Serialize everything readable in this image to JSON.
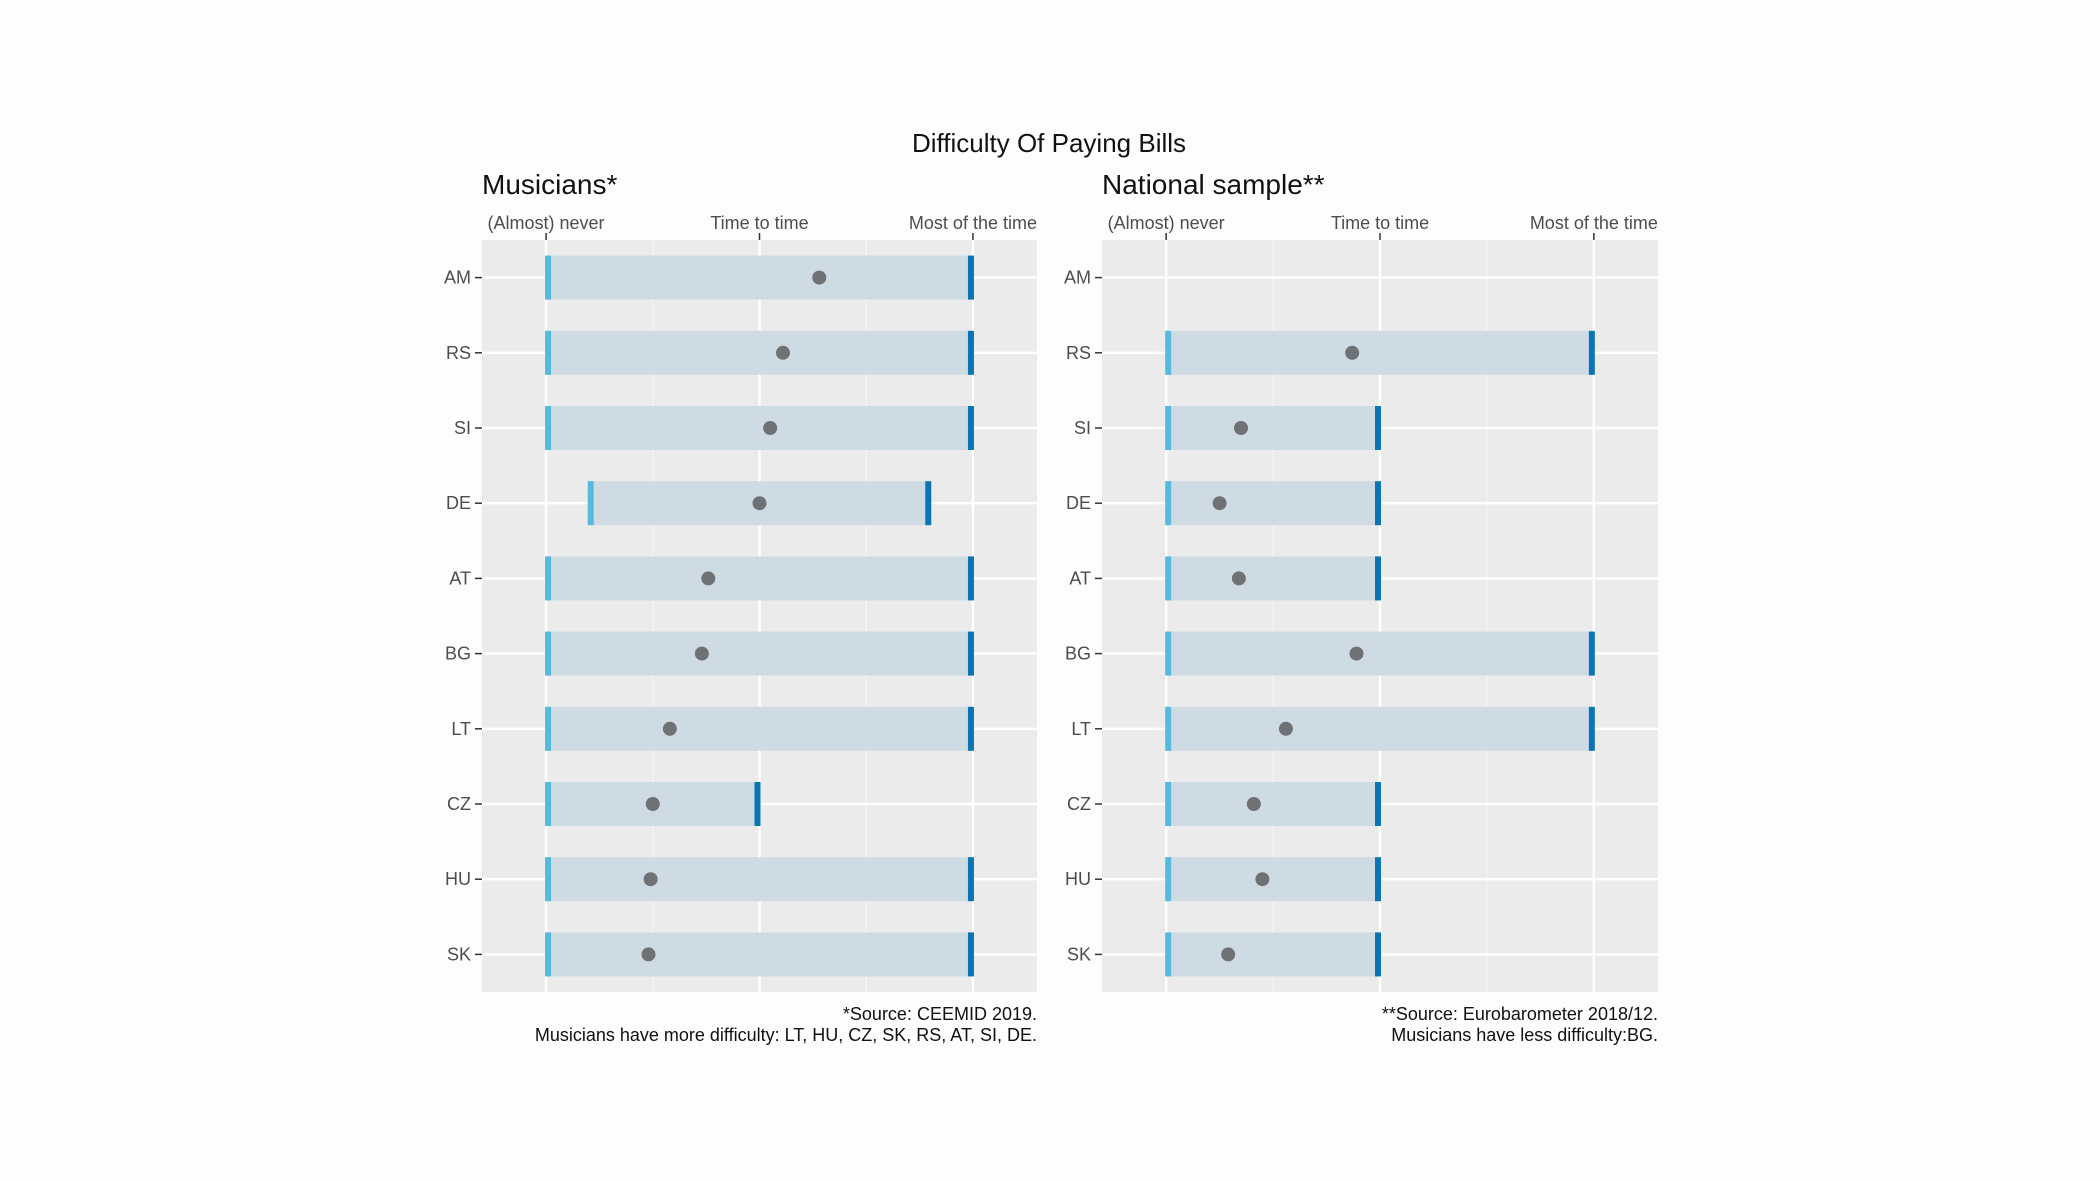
{
  "figure": {
    "title": "Difficulty Of Paying Bills"
  },
  "chart_data": [
    {
      "type": "range",
      "title": "Musicians*",
      "x_ticks": [
        {
          "value": 1,
          "label": "(Almost) never"
        },
        {
          "value": 2,
          "label": "Time to time"
        },
        {
          "value": 3,
          "label": "Most of the time"
        }
      ],
      "xlim": [
        0.7,
        3.3
      ],
      "categories": [
        "AM",
        "RS",
        "SI",
        "DE",
        "AT",
        "BG",
        "LT",
        "CZ",
        "HU",
        "SK"
      ],
      "low": [
        1,
        1,
        1,
        1.2,
        1,
        1,
        1,
        1,
        1,
        1
      ],
      "high": [
        3,
        3,
        3,
        2.8,
        3,
        3,
        3,
        2,
        3,
        3
      ],
      "mean": [
        2.28,
        2.11,
        2.05,
        2.0,
        1.76,
        1.73,
        1.58,
        1.5,
        1.49,
        1.48
      ],
      "caption": [
        "*Source: CEEMID 2019.",
        "Musicians have more difficulty: LT, HU, CZ, SK, RS, AT, SI, DE."
      ],
      "colors": {
        "low": "#56b9de",
        "high": "#0a74b4",
        "range": "#cfdbe3",
        "mean": "#6f7275"
      }
    },
    {
      "type": "range",
      "title": "National sample**",
      "x_ticks": [
        {
          "value": 1,
          "label": "(Almost) never"
        },
        {
          "value": 2,
          "label": "Time to time"
        },
        {
          "value": 3,
          "label": "Most of the time"
        }
      ],
      "xlim": [
        0.7,
        3.3
      ],
      "categories": [
        "AM",
        "RS",
        "SI",
        "DE",
        "AT",
        "BG",
        "LT",
        "CZ",
        "HU",
        "SK"
      ],
      "low": [
        null,
        1,
        1,
        1,
        1,
        1,
        1,
        1,
        1,
        1
      ],
      "high": [
        null,
        3,
        2,
        2,
        2,
        3,
        3,
        2,
        2,
        2
      ],
      "mean": [
        null,
        1.87,
        1.35,
        1.25,
        1.34,
        1.89,
        1.56,
        1.41,
        1.45,
        1.29
      ],
      "caption": [
        "**Source: Eurobarometer 2018/12.",
        "Musicians have less difficulty:BG."
      ],
      "colors": {
        "low": "#56b9de",
        "high": "#0a74b4",
        "range": "#cfdbe3",
        "mean": "#6f7275"
      }
    }
  ]
}
